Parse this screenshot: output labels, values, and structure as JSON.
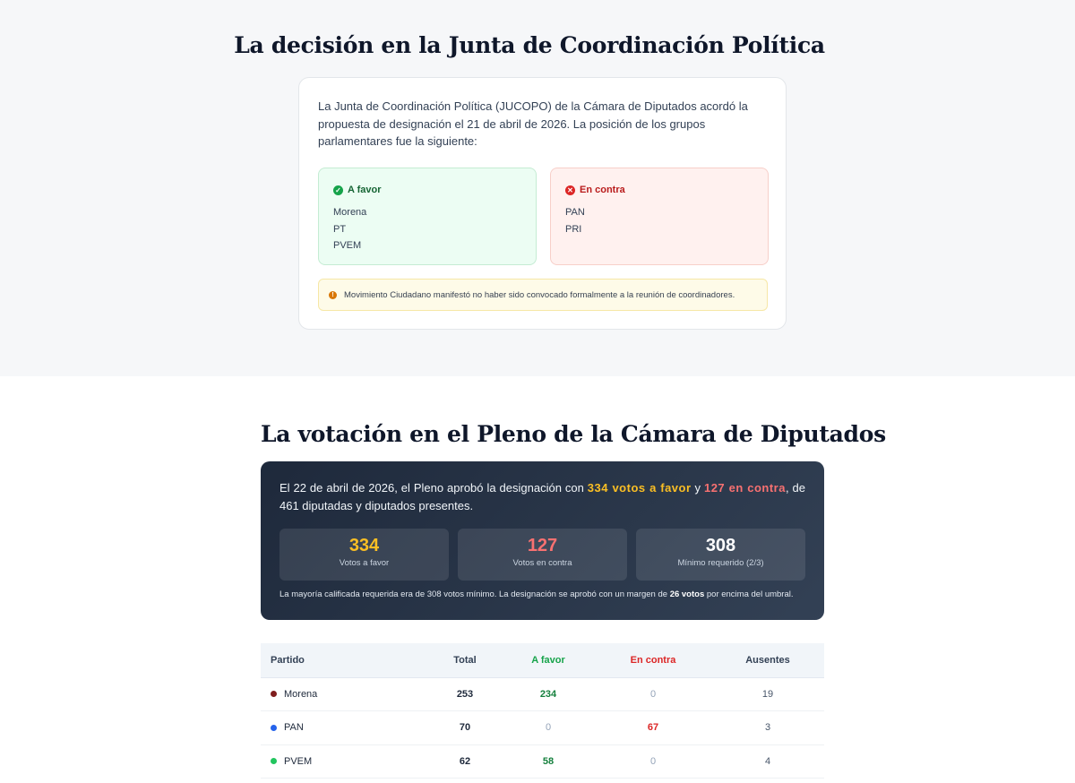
{
  "section1": {
    "title": "La decisión en la Junta de Coordinación Política",
    "intro": "La Junta de Coordinación Política (JUCOPO) de la Cámara de Diputados acordó la propuesta de designación el 21 de abril de 2026. La posición de los grupos parlamentares fue la siguiente:",
    "favor": {
      "label": "A favor",
      "icon": "check-circle-icon",
      "parties": [
        "Morena",
        "PT",
        "PVEM"
      ]
    },
    "contra": {
      "label": "En contra",
      "icon": "x-circle-icon",
      "parties": [
        "PAN",
        "PRI"
      ]
    },
    "notice": "Movimiento Ciudadano manifestó no haber sido convocado formalmente a la reunión de coordinadores."
  },
  "section2": {
    "title": "La votación en el Pleno de la Cámara de Diputados",
    "intro": {
      "part1": "El 22 de abril de 2026, el Pleno aprobó la designación con ",
      "favor_text": "334 votos a favor",
      "part2": " y ",
      "contra_text": "127 en contra",
      "part3": ", de 461 diputadas y diputados presentes."
    },
    "stats": [
      {
        "value": "334",
        "label": "Votos a favor"
      },
      {
        "value": "127",
        "label": "Votos en contra"
      },
      {
        "value": "308",
        "label": "Mínimo requerido (2/3)"
      }
    ],
    "note": {
      "part1": "La mayoría calificada requerida era de 308 votos mínimo. La designación se aprobó con un margen de ",
      "bold": "26 votos",
      "part2": " por encima del umbral."
    }
  },
  "table": {
    "headers": [
      "Partido",
      "Total",
      "A favor",
      "En contra",
      "Ausentes"
    ],
    "rows": [
      {
        "party": "Morena",
        "color": "#7f1d1d",
        "total": "253",
        "favor": "234",
        "contra": "0",
        "ausentes": "19"
      },
      {
        "party": "PAN",
        "color": "#2563eb",
        "total": "70",
        "favor": "0",
        "contra": "67",
        "ausentes": "3"
      },
      {
        "party": "PVEM",
        "color": "#22c55e",
        "total": "62",
        "favor": "58",
        "contra": "0",
        "ausentes": "4"
      }
    ]
  },
  "colors": {
    "favor": "#16a34a",
    "contra": "#dc2626",
    "highlight_favor": "#fbbf24",
    "highlight_contra": "#f87171"
  }
}
